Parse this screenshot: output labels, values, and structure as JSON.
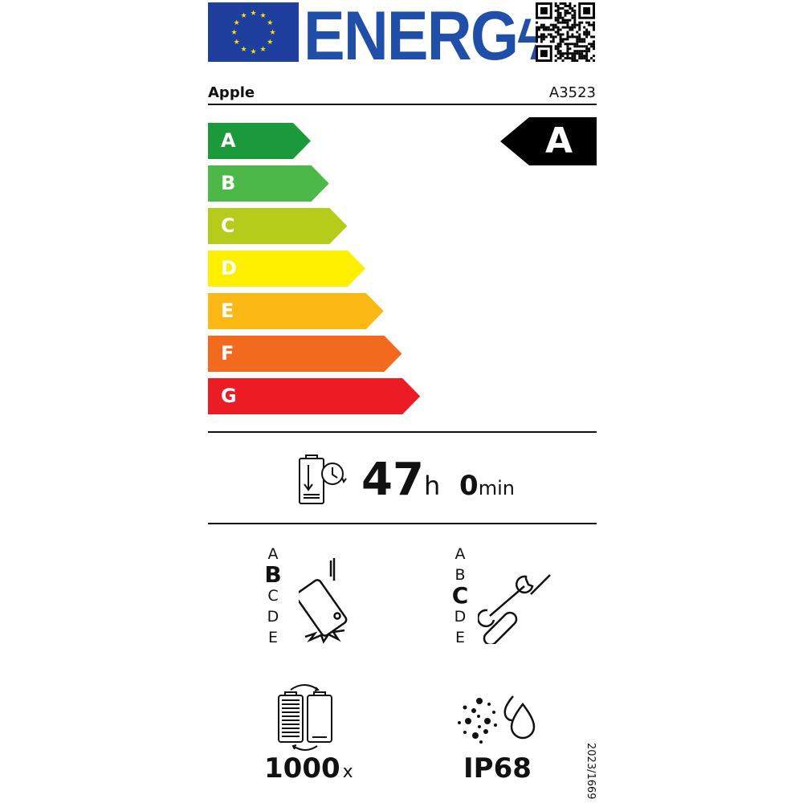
{
  "header": {
    "logo_text": "ENERG",
    "brand": "Apple",
    "model": "A3523"
  },
  "energy_scale": {
    "classes": [
      "A",
      "B",
      "C",
      "D",
      "E",
      "F",
      "G"
    ],
    "colors": [
      "#1a9a3a",
      "#4cb848",
      "#b6cc1b",
      "#fff000",
      "#fcb814",
      "#f26a1d",
      "#ec1c24"
    ],
    "rating": "A"
  },
  "battery_endurance": {
    "hours": "47",
    "hours_unit": "h",
    "minutes": "0",
    "minutes_unit": "min"
  },
  "drop_resistance": {
    "classes": [
      "A",
      "B",
      "C",
      "D",
      "E"
    ],
    "rating": "B"
  },
  "repairability": {
    "classes": [
      "A",
      "B",
      "C",
      "D",
      "E"
    ],
    "rating": "C"
  },
  "battery_cycles": {
    "value": "1000",
    "unit": "x"
  },
  "ingress_protection": {
    "value": "IP68"
  },
  "regulation": "2023/1669"
}
